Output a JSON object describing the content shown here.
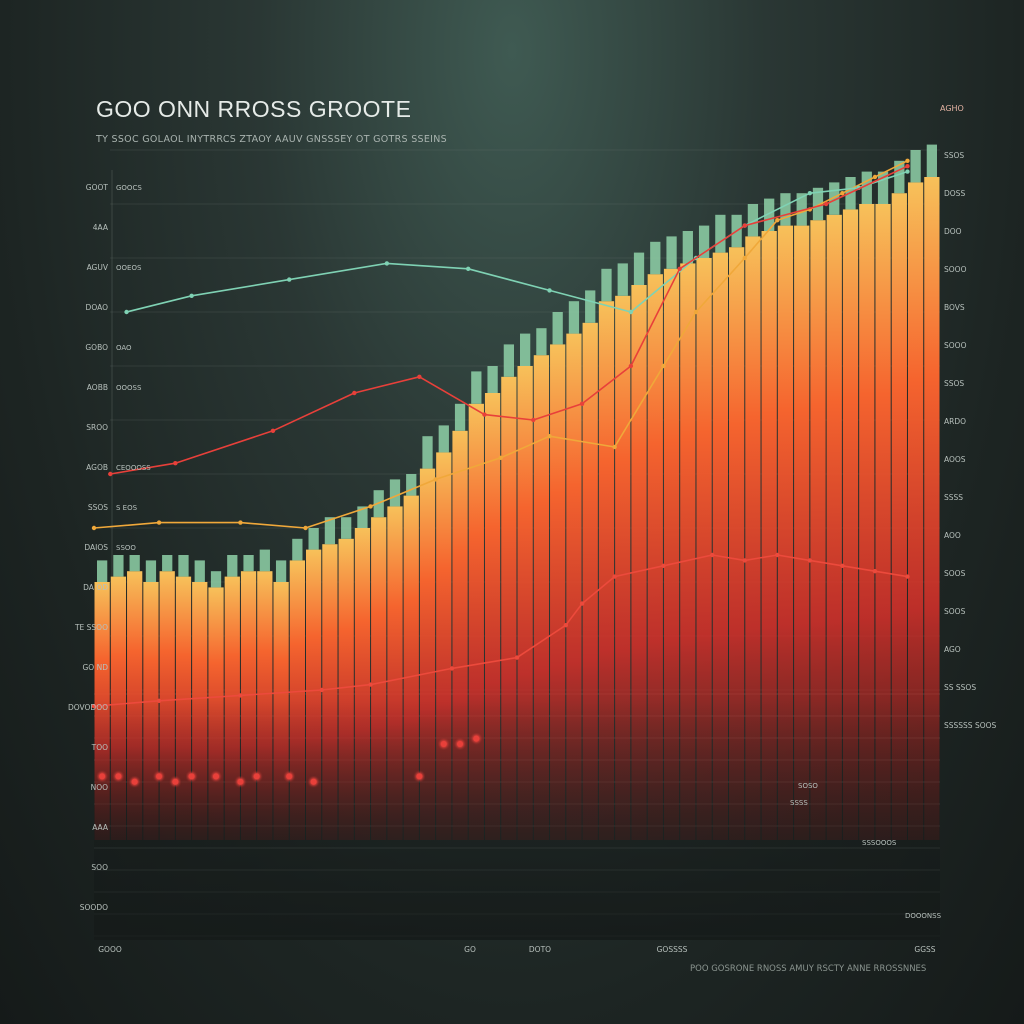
{
  "chart_data": {
    "type": "bar",
    "title": "GOO ONN RROSS GROOTE",
    "subtitle": "TY SSOC GOLAOL INYTRRCS ZTAOY AAUV GNSSSEY OT GOTRS SSEINS",
    "footer_note": "POO GOSRONE RNOSS AMUY RSCTY ANNE RROSSNNES",
    "corner_label": "AGHO",
    "xlabel": "",
    "ylabel": "",
    "xlim": [
      0,
      52
    ],
    "ylim": [
      0,
      100
    ],
    "bar_top_values": [
      20,
      21,
      22,
      20,
      22,
      21,
      20,
      19,
      21,
      22,
      22,
      20,
      24,
      26,
      27,
      28,
      30,
      32,
      34,
      36,
      41,
      44,
      48,
      53,
      55,
      58,
      60,
      62,
      64,
      66,
      68,
      72,
      73,
      75,
      77,
      78,
      79,
      80,
      81,
      82,
      84,
      85,
      86,
      86,
      87,
      88,
      89,
      90,
      90,
      92,
      94,
      95
    ],
    "bar_cap_values": [
      4,
      4,
      3,
      4,
      3,
      4,
      4,
      3,
      4,
      3,
      4,
      4,
      4,
      4,
      5,
      4,
      4,
      5,
      5,
      4,
      6,
      5,
      5,
      6,
      5,
      6,
      6,
      5,
      6,
      6,
      6,
      6,
      6,
      6,
      6,
      6,
      6,
      6,
      7,
      6,
      6,
      6,
      6,
      6,
      6,
      6,
      6,
      6,
      6,
      6,
      6,
      6
    ],
    "series": [
      {
        "type": "line",
        "x": [
          0,
          4,
          9,
          13,
          17,
          21,
          25,
          28,
          32,
          35,
          37,
          40,
          42,
          44,
          46,
          48,
          50
        ],
        "y": [
          30,
          31,
          31,
          30,
          34,
          39,
          43,
          47,
          45,
          60,
          70,
          80,
          87,
          89,
          92,
          95,
          98
        ]
      },
      {
        "type": "line",
        "x": [
          2,
          6,
          12,
          18,
          23,
          28,
          33,
          37,
          40,
          44,
          47,
          50
        ],
        "y": [
          70,
          73,
          76,
          79,
          78,
          74,
          70,
          80,
          86,
          92,
          93,
          96
        ]
      },
      {
        "type": "line",
        "x": [
          1,
          5,
          11,
          16,
          20,
          24,
          27,
          30,
          33,
          36,
          40,
          45,
          50
        ],
        "y": [
          40,
          42,
          48,
          55,
          58,
          51,
          50,
          53,
          60,
          78,
          86,
          90,
          97
        ]
      },
      {
        "type": "line",
        "x": [
          0,
          4,
          9,
          14,
          17,
          22,
          26,
          29,
          30,
          32,
          35,
          38,
          40,
          42,
          44,
          46,
          48,
          50
        ],
        "y": [
          -3,
          -2,
          -1,
          0,
          1,
          4,
          6,
          12,
          16,
          21,
          23,
          25,
          24,
          25,
          24,
          23,
          22,
          21
        ]
      }
    ],
    "markers": [
      {
        "x": 0.5,
        "y": -16
      },
      {
        "x": 1.5,
        "y": -16
      },
      {
        "x": 2.5,
        "y": -17
      },
      {
        "x": 4,
        "y": -16
      },
      {
        "x": 5,
        "y": -17
      },
      {
        "x": 6,
        "y": -16
      },
      {
        "x": 7.5,
        "y": -16
      },
      {
        "x": 9,
        "y": -17
      },
      {
        "x": 10,
        "y": -16
      },
      {
        "x": 12,
        "y": -16
      },
      {
        "x": 13.5,
        "y": -17
      },
      {
        "x": 20,
        "y": -16
      },
      {
        "x": 21.5,
        "y": -10
      },
      {
        "x": 22.5,
        "y": -10
      },
      {
        "x": 23.5,
        "y": -9
      }
    ],
    "left_tick_labels": [
      "GOOT",
      "4AA",
      "AGUV",
      "DOAO",
      "GOBO",
      "AOBB",
      "SROO",
      "AGOB",
      "SSOS",
      "DAIOS",
      "DA OD",
      "TE SSOO",
      "GO ND",
      "DOVODOO",
      "TOO",
      "NOO",
      "AAA",
      "SOO",
      "SOODO"
    ],
    "left_secondary_labels": [
      "GOOCS",
      "",
      "OOEOS",
      "",
      "OAO",
      "OOOSS",
      "",
      "CEOOOSS",
      "S EOS",
      "SSOO"
    ],
    "right_tick_labels": [
      "SSOS",
      "DOSS",
      "DOO",
      "SOOO",
      "BOVS",
      "SOOO",
      "SSOS",
      "ARDO",
      "AOOS",
      "SSSS",
      "AOO",
      "SOOS",
      "SOOS",
      "AGO",
      "SS SSOS",
      "SSSSSS SOOS"
    ],
    "bottom_tick_labels": [
      "GOOO",
      "GO",
      "DOTO",
      "GOSSSS",
      "GGSS"
    ],
    "lower_labels": [
      "SOSO",
      "SSSS",
      "SSSOOOS",
      "DOOONSS"
    ]
  },
  "colors": {
    "bar_low": "#8a1a18",
    "bar_mid": "#f04a32",
    "bar_high": "#f7c15a",
    "bar_cap": "#8fd1a8",
    "line_teal": "#7fd2b4",
    "line_red": "#e8403a",
    "line_orange": "#f0a83a",
    "line_red_low": "#ec4a3c",
    "marker": "#e8403a",
    "grid": "#6d7772",
    "label": "#b7c0bc"
  }
}
